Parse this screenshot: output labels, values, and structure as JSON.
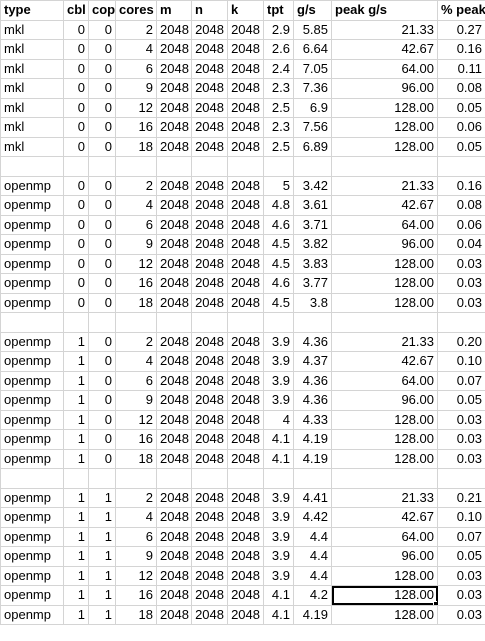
{
  "columns": [
    "type",
    "cbl",
    "cop",
    "cores",
    "m",
    "n",
    "k",
    "tpt",
    "g/s",
    "peak g/s",
    "% peak"
  ],
  "rows": [
    [
      "mkl",
      "0",
      "0",
      "2",
      "2048",
      "2048",
      "2048",
      "2.9",
      "5.85",
      "21.33",
      "0.27"
    ],
    [
      "mkl",
      "0",
      "0",
      "4",
      "2048",
      "2048",
      "2048",
      "2.6",
      "6.64",
      "42.67",
      "0.16"
    ],
    [
      "mkl",
      "0",
      "0",
      "6",
      "2048",
      "2048",
      "2048",
      "2.4",
      "7.05",
      "64.00",
      "0.11"
    ],
    [
      "mkl",
      "0",
      "0",
      "9",
      "2048",
      "2048",
      "2048",
      "2.3",
      "7.36",
      "96.00",
      "0.08"
    ],
    [
      "mkl",
      "0",
      "0",
      "12",
      "2048",
      "2048",
      "2048",
      "2.5",
      "6.9",
      "128.00",
      "0.05"
    ],
    [
      "mkl",
      "0",
      "0",
      "16",
      "2048",
      "2048",
      "2048",
      "2.3",
      "7.56",
      "128.00",
      "0.06"
    ],
    [
      "mkl",
      "0",
      "0",
      "18",
      "2048",
      "2048",
      "2048",
      "2.5",
      "6.89",
      "128.00",
      "0.05"
    ],
    [
      "",
      "",
      "",
      "",
      "",
      "",
      "",
      "",
      "",
      "",
      ""
    ],
    [
      "openmp",
      "0",
      "0",
      "2",
      "2048",
      "2048",
      "2048",
      "5",
      "3.42",
      "21.33",
      "0.16"
    ],
    [
      "openmp",
      "0",
      "0",
      "4",
      "2048",
      "2048",
      "2048",
      "4.8",
      "3.61",
      "42.67",
      "0.08"
    ],
    [
      "openmp",
      "0",
      "0",
      "6",
      "2048",
      "2048",
      "2048",
      "4.6",
      "3.71",
      "64.00",
      "0.06"
    ],
    [
      "openmp",
      "0",
      "0",
      "9",
      "2048",
      "2048",
      "2048",
      "4.5",
      "3.82",
      "96.00",
      "0.04"
    ],
    [
      "openmp",
      "0",
      "0",
      "12",
      "2048",
      "2048",
      "2048",
      "4.5",
      "3.83",
      "128.00",
      "0.03"
    ],
    [
      "openmp",
      "0",
      "0",
      "16",
      "2048",
      "2048",
      "2048",
      "4.6",
      "3.77",
      "128.00",
      "0.03"
    ],
    [
      "openmp",
      "0",
      "0",
      "18",
      "2048",
      "2048",
      "2048",
      "4.5",
      "3.8",
      "128.00",
      "0.03"
    ],
    [
      "",
      "",
      "",
      "",
      "",
      "",
      "",
      "",
      "",
      "",
      ""
    ],
    [
      "openmp",
      "1",
      "0",
      "2",
      "2048",
      "2048",
      "2048",
      "3.9",
      "4.36",
      "21.33",
      "0.20"
    ],
    [
      "openmp",
      "1",
      "0",
      "4",
      "2048",
      "2048",
      "2048",
      "3.9",
      "4.37",
      "42.67",
      "0.10"
    ],
    [
      "openmp",
      "1",
      "0",
      "6",
      "2048",
      "2048",
      "2048",
      "3.9",
      "4.36",
      "64.00",
      "0.07"
    ],
    [
      "openmp",
      "1",
      "0",
      "9",
      "2048",
      "2048",
      "2048",
      "3.9",
      "4.36",
      "96.00",
      "0.05"
    ],
    [
      "openmp",
      "1",
      "0",
      "12",
      "2048",
      "2048",
      "2048",
      "4",
      "4.33",
      "128.00",
      "0.03"
    ],
    [
      "openmp",
      "1",
      "0",
      "16",
      "2048",
      "2048",
      "2048",
      "4.1",
      "4.19",
      "128.00",
      "0.03"
    ],
    [
      "openmp",
      "1",
      "0",
      "18",
      "2048",
      "2048",
      "2048",
      "4.1",
      "4.19",
      "128.00",
      "0.03"
    ],
    [
      "",
      "",
      "",
      "",
      "",
      "",
      "",
      "",
      "",
      "",
      ""
    ],
    [
      "openmp",
      "1",
      "1",
      "2",
      "2048",
      "2048",
      "2048",
      "3.9",
      "4.41",
      "21.33",
      "0.21"
    ],
    [
      "openmp",
      "1",
      "1",
      "4",
      "2048",
      "2048",
      "2048",
      "3.9",
      "4.42",
      "42.67",
      "0.10"
    ],
    [
      "openmp",
      "1",
      "1",
      "6",
      "2048",
      "2048",
      "2048",
      "3.9",
      "4.4",
      "64.00",
      "0.07"
    ],
    [
      "openmp",
      "1",
      "1",
      "9",
      "2048",
      "2048",
      "2048",
      "3.9",
      "4.4",
      "96.00",
      "0.05"
    ],
    [
      "openmp",
      "1",
      "1",
      "12",
      "2048",
      "2048",
      "2048",
      "3.9",
      "4.4",
      "128.00",
      "0.03"
    ],
    [
      "openmp",
      "1",
      "1",
      "16",
      "2048",
      "2048",
      "2048",
      "4.1",
      "4.2",
      "128.00",
      "0.03"
    ],
    [
      "openmp",
      "1",
      "1",
      "18",
      "2048",
      "2048",
      "2048",
      "4.1",
      "4.19",
      "128.00",
      "0.03"
    ]
  ],
  "selected_cell": {
    "row": 29,
    "col": 9
  }
}
